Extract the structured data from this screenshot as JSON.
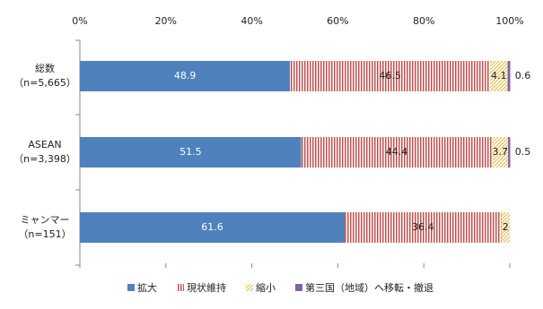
{
  "chart_data": {
    "type": "stacked-bar-horizontal",
    "categories": [
      "総数",
      "ASEAN",
      "ミャンマー"
    ],
    "category_notes": [
      "（n=5,665）",
      "（n=3,398）",
      "（n=151）"
    ],
    "series": [
      {
        "name": "拡大",
        "color": "#4f81bd",
        "values": [
          48.9,
          51.5,
          61.6
        ]
      },
      {
        "name": "現状維持",
        "color": "#c0504d",
        "values": [
          46.5,
          44.4,
          36.4
        ]
      },
      {
        "name": "縮小",
        "color": "#e6b83c",
        "values": [
          4.1,
          3.7,
          2.0
        ]
      },
      {
        "name": "第三国（地域）へ移転・撤退",
        "color": "#8064a2",
        "values": [
          0.6,
          0.5,
          null
        ]
      }
    ],
    "xlim": [
      0,
      100
    ],
    "xticks": [
      {
        "value": 0,
        "label": "0%"
      },
      {
        "value": 20,
        "label": "20%"
      },
      {
        "value": 40,
        "label": "40%"
      },
      {
        "value": 60,
        "label": "60%"
      },
      {
        "value": 80,
        "label": "80%"
      },
      {
        "value": 100,
        "label": "100%"
      }
    ]
  }
}
